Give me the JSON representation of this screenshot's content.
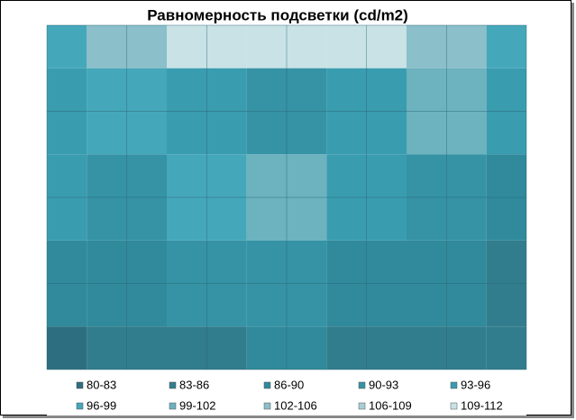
{
  "chart_data": {
    "type": "contour",
    "title": "Равномерность подсветки (cd/m2)",
    "levels": [
      80,
      83,
      86,
      90,
      93,
      96,
      99,
      102,
      106,
      109,
      112
    ],
    "series": [
      {
        "name": "80-83",
        "color": "#2d6f80"
      },
      {
        "name": "83-86",
        "color": "#327d8d"
      },
      {
        "name": "86-90",
        "color": "#308a9b"
      },
      {
        "name": "90-93",
        "color": "#3593a5"
      },
      {
        "name": "93-96",
        "color": "#3a9caf"
      },
      {
        "name": "96-99",
        "color": "#45a7ba"
      },
      {
        "name": "99-102",
        "color": "#6cb2bf"
      },
      {
        "name": "102-106",
        "color": "#8bbfc9"
      },
      {
        "name": "106-109",
        "color": "#a8cfd6"
      },
      {
        "name": "109-112",
        "color": "#c8e2e6"
      }
    ],
    "z": [
      [
        97,
        104,
        111,
        111,
        111,
        104,
        97
      ],
      [
        95,
        98,
        93,
        92,
        94,
        99,
        94
      ],
      [
        93,
        92,
        96,
        100,
        94,
        90,
        88
      ],
      [
        88,
        89,
        90,
        91,
        89,
        87,
        85
      ],
      [
        81,
        84,
        85,
        86,
        85,
        84,
        83
      ]
    ]
  }
}
